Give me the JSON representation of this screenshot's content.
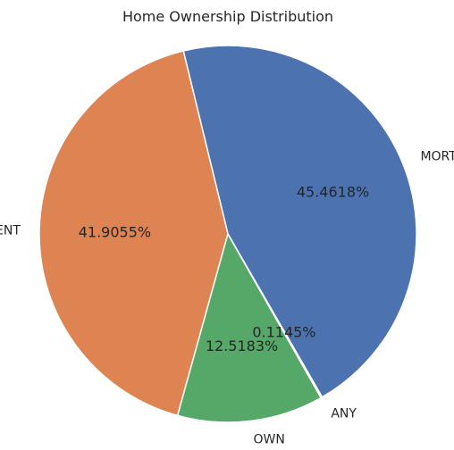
{
  "chart_data": {
    "type": "pie",
    "title": "Home Ownership Distribution",
    "slices": [
      {
        "label": "MORTGAGE",
        "value": 45.4618,
        "pct_label": "45.4618%",
        "color": "#4c72b0"
      },
      {
        "label": "RENT",
        "value": 41.9055,
        "pct_label": "41.9055%",
        "color": "#dd8452"
      },
      {
        "label": "OWN",
        "value": 12.5183,
        "pct_label": "12.5183%",
        "color": "#55a868"
      },
      {
        "label": "ANY",
        "value": 0.1145,
        "pct_label": "0.1145%",
        "color": "#c44e52"
      }
    ],
    "start_angle_deg": -60,
    "direction": "counterclockwise",
    "edge_color": "#ffffff",
    "legend": "none"
  }
}
